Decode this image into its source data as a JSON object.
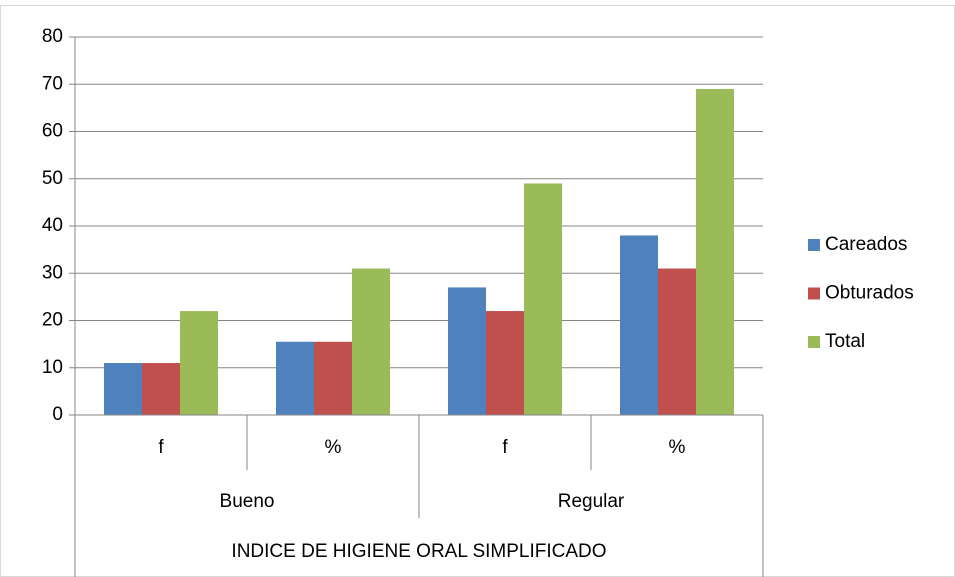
{
  "chart_data": {
    "type": "bar",
    "x_label": "INDICE DE HIGIENE ORAL SIMPLIFICADO",
    "categories": [
      "f",
      "%",
      "f",
      "%"
    ],
    "groups": [
      "Bueno",
      "Regular"
    ],
    "series": [
      {
        "name": "Careados",
        "color": "#4f81bd",
        "values": [
          11,
          15.5,
          27,
          38
        ]
      },
      {
        "name": "Obturados",
        "color": "#c0504d",
        "values": [
          11,
          15.5,
          22,
          31
        ]
      },
      {
        "name": "Total",
        "color": "#9bbb59",
        "values": [
          22,
          31,
          49,
          69
        ]
      }
    ],
    "ylim": [
      0,
      80
    ],
    "yticks": [
      0,
      10,
      20,
      30,
      40,
      50,
      60,
      70,
      80
    ],
    "grid": true,
    "legend": "right"
  }
}
